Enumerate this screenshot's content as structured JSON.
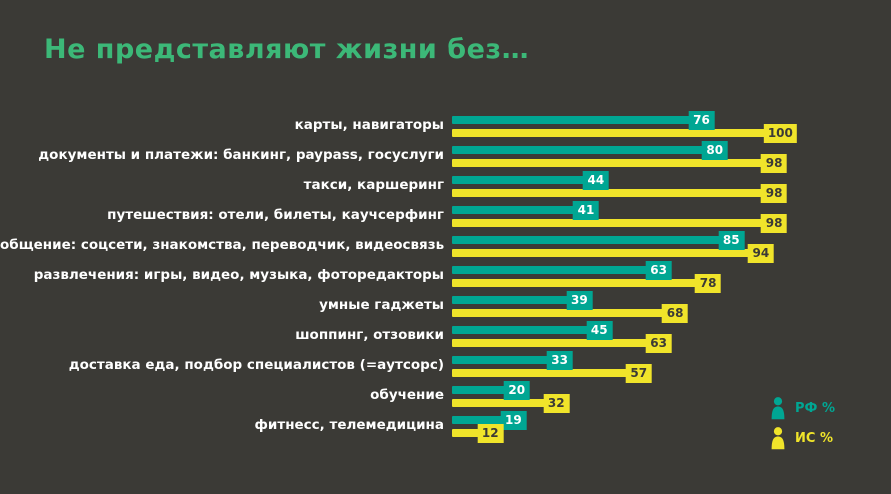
{
  "title": "Не представляют жизни без…",
  "colors": {
    "background": "#3b3a36",
    "title": "#3cb878",
    "rf": "#00a693",
    "is": "#f0e42a",
    "label_text": "#ffffff"
  },
  "legend": {
    "rf_label": "РФ %",
    "is_label": "ИС %",
    "rf_icon": "person-icon",
    "is_icon": "person-icon"
  },
  "chart_data": {
    "type": "bar",
    "orientation": "horizontal",
    "title": "Не представляют жизни без…",
    "xlabel": "",
    "ylabel": "",
    "xlim": [
      0,
      100
    ],
    "grid": false,
    "legend_position": "bottom-right",
    "categories": [
      "карты, навигаторы",
      "документы и платежи: банкинг, paypass, госуслуги",
      "такси, каршеринг",
      "путешествия: отели, билеты, каучсерфинг",
      "общение: соцсети, знакомства, переводчик, видеосвязь",
      "развлечения: игры, видео, музыка, фоторедакторы",
      "умные гаджеты",
      "шоппинг, отзовики",
      "доставка еда, подбор специалистов (=аутсорс)",
      "обучение",
      "фитнесс, телемедицина"
    ],
    "series": [
      {
        "name": "РФ %",
        "color": "#00a693",
        "values": [
          76,
          80,
          44,
          41,
          85,
          63,
          39,
          45,
          33,
          20,
          19
        ]
      },
      {
        "name": "ИС %",
        "color": "#f0e42a",
        "values": [
          100,
          98,
          98,
          98,
          94,
          78,
          68,
          63,
          57,
          32,
          12
        ]
      }
    ]
  }
}
